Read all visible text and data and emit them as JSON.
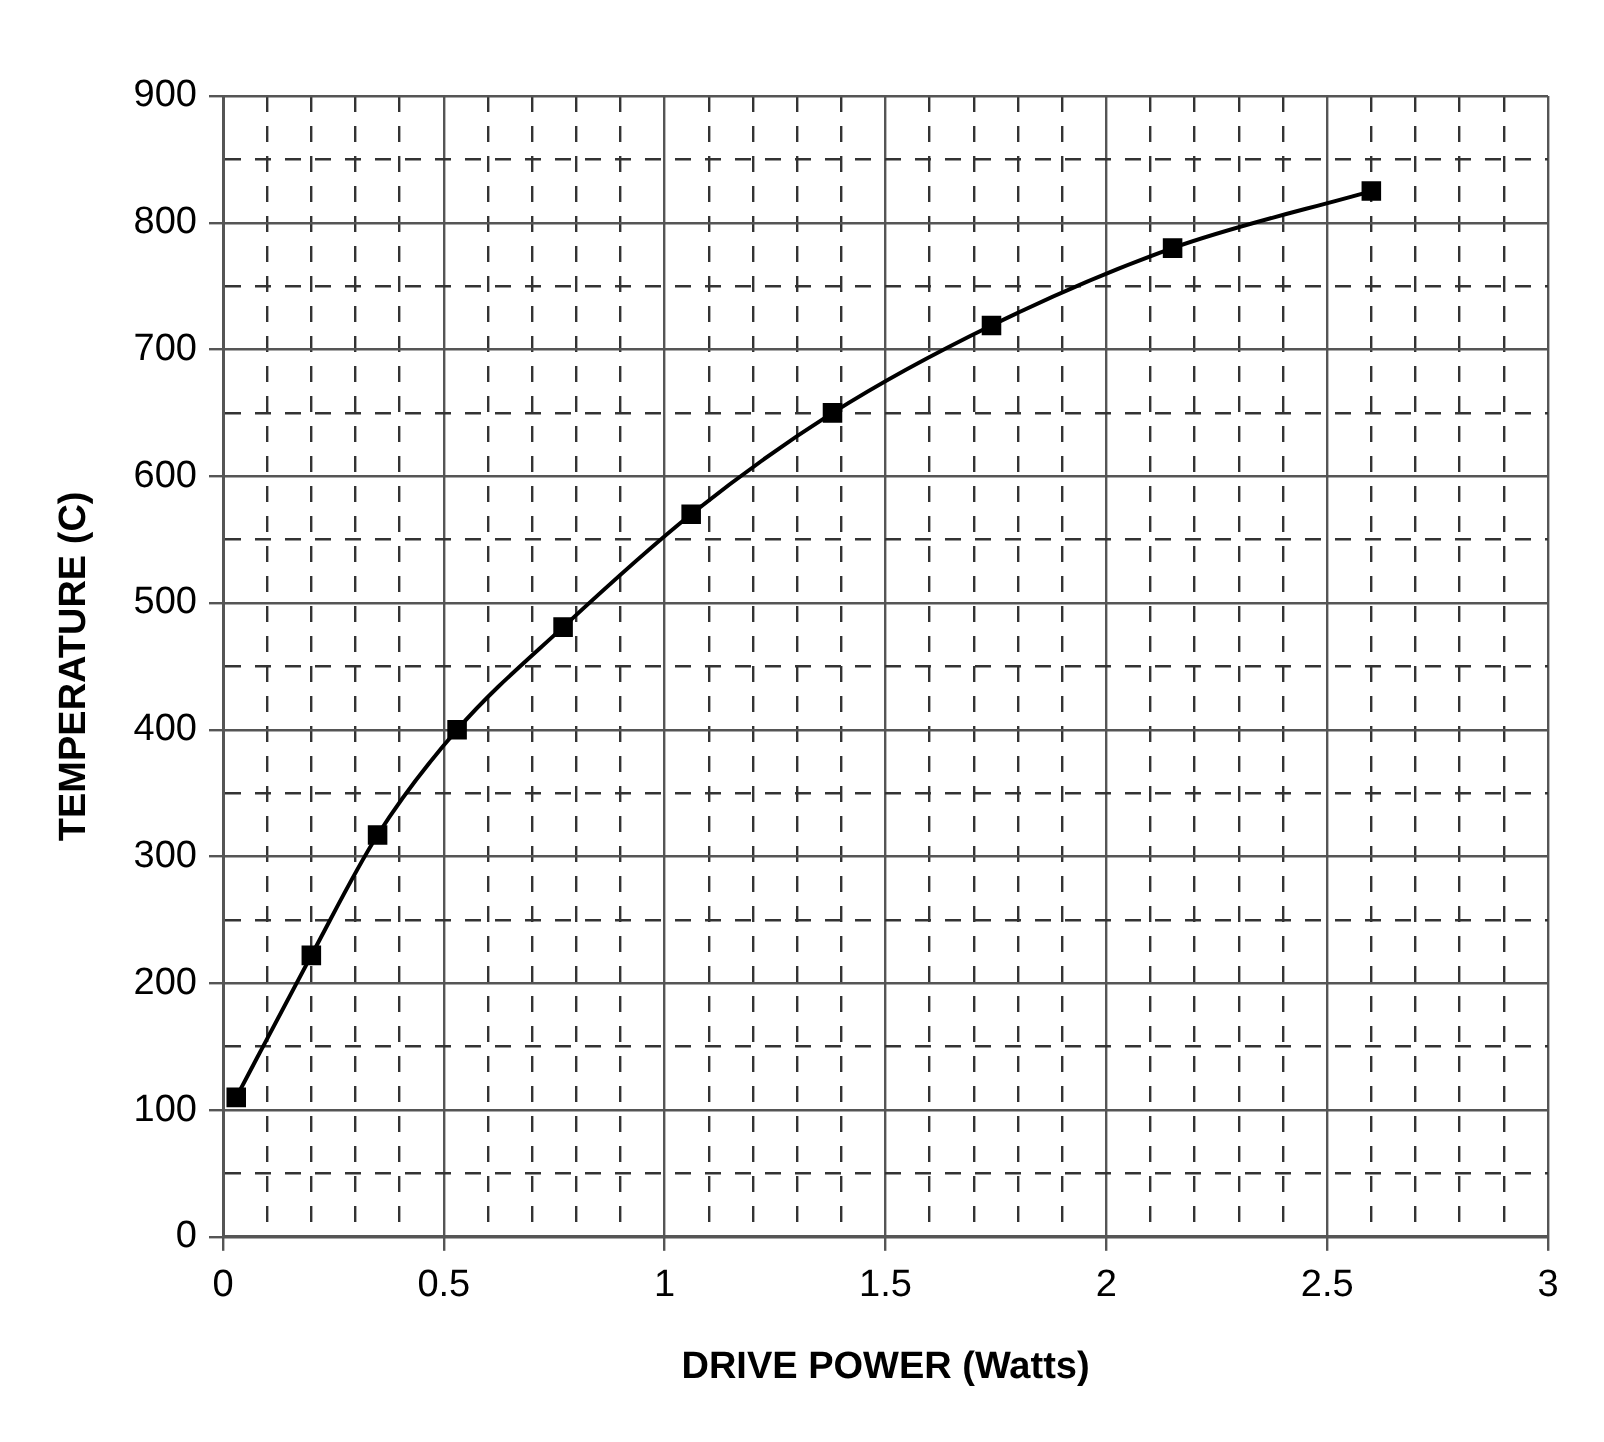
{
  "chart_data": {
    "type": "line",
    "xlabel": "DRIVE POWER (Watts)",
    "ylabel": "TEMPERATURE (C)",
    "x": [
      0.03,
      0.2,
      0.35,
      0.53,
      0.77,
      1.06,
      1.38,
      1.74,
      2.15,
      2.6
    ],
    "series": [
      {
        "color": "#000000",
        "values": [
          110,
          222,
          317,
          400,
          481,
          570,
          650,
          719,
          780,
          825
        ]
      }
    ],
    "xlim": [
      0,
      3
    ],
    "xticks": [
      0,
      {
        "value": 0.1,
        "label": null
      },
      {
        "value": 0.2,
        "label": null
      },
      {
        "value": 0.3,
        "label": null
      },
      {
        "value": 0.4,
        "label": null
      },
      0.5,
      {
        "value": 0.6,
        "label": null
      },
      {
        "value": 0.7,
        "label": null
      },
      {
        "value": 0.8,
        "label": null
      },
      {
        "value": 0.9,
        "label": null
      },
      1,
      {
        "value": 1.1,
        "label": null
      },
      {
        "value": 1.2,
        "label": null
      },
      {
        "value": 1.3,
        "label": null
      },
      {
        "value": 1.4,
        "label": null
      },
      1.5,
      {
        "value": 1.6,
        "label": null
      },
      {
        "value": 1.7,
        "label": null
      },
      {
        "value": 1.8,
        "label": null
      },
      {
        "value": 1.9,
        "label": null
      },
      2,
      {
        "value": 2.1,
        "label": null
      },
      {
        "value": 2.2,
        "label": null
      },
      {
        "value": 2.3,
        "label": null
      },
      {
        "value": 2.4,
        "label": null
      },
      2.5,
      {
        "value": 2.6,
        "label": null
      },
      {
        "value": 2.7,
        "label": null
      },
      {
        "value": 2.8,
        "label": null
      },
      {
        "value": 2.9,
        "label": null
      },
      3
    ],
    "ylim": [
      0,
      900
    ],
    "yticks": [
      0,
      {
        "value": 50,
        "label": null
      },
      100,
      {
        "value": 150,
        "label": null
      },
      200,
      {
        "value": 250,
        "label": null
      },
      300,
      {
        "value": 350,
        "label": null
      },
      400,
      {
        "value": 450,
        "label": null
      },
      500,
      {
        "value": 550,
        "label": null
      },
      600,
      {
        "value": 650,
        "label": null
      },
      700,
      {
        "value": 750,
        "label": null
      },
      800,
      {
        "value": 850,
        "label": null
      },
      900
    ],
    "grid": true,
    "legend": false,
    "marker": "square",
    "line_style": "solid"
  }
}
